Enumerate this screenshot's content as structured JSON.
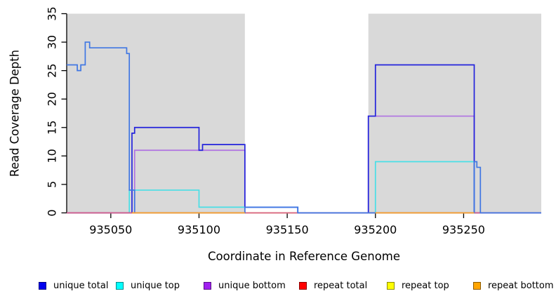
{
  "chart_data": {
    "type": "line",
    "subtype": "step-coverage",
    "title": "",
    "xlabel": "Coordinate in Reference Genome",
    "ylabel": "Read Coverage Depth",
    "xlim": [
      935025,
      935294
    ],
    "ylim": [
      0,
      35
    ],
    "x_ticks": [
      935050,
      935100,
      935150,
      935200,
      935250
    ],
    "y_ticks": [
      0,
      5,
      10,
      15,
      20,
      25,
      30,
      35
    ],
    "grid": false,
    "legend_position": "bottom-horizontal",
    "axis_color": "#000000",
    "background_regions": [
      {
        "name": "highlight-band-left",
        "x0": 935025,
        "x1": 935126,
        "color": "#d9d9d9"
      },
      {
        "name": "highlight-band-right",
        "x0": 935196,
        "x1": 935294,
        "color": "#d9d9d9"
      }
    ],
    "series": [
      {
        "name": "unique bottom",
        "color": "#b072e2",
        "segments": [
          [
            [
              935025,
              0
            ],
            [
              935063.5,
              0
            ],
            [
              935063.5,
              11
            ],
            [
              935126,
              11
            ],
            [
              935126,
              0
            ],
            [
              935196,
              0
            ],
            [
              935196,
              17
            ],
            [
              935256,
              17
            ],
            [
              935256,
              0
            ],
            [
              935294,
              0
            ]
          ]
        ]
      },
      {
        "name": "unique top",
        "color": "#49dfe6",
        "segments": [
          [
            [
              935025,
              0
            ],
            [
              935060.5,
              0
            ],
            [
              935060.5,
              4
            ],
            [
              935100,
              4
            ],
            [
              935100,
              1
            ],
            [
              935156,
              1
            ],
            [
              935156,
              0
            ],
            [
              935200,
              0
            ],
            [
              935200,
              9
            ],
            [
              935256,
              9
            ],
            [
              935256,
              0
            ],
            [
              935294,
              0
            ]
          ]
        ]
      },
      {
        "name": "repeat top",
        "color": "#ffff00",
        "segments": [
          [
            [
              935025,
              0
            ],
            [
              935294,
              0
            ]
          ]
        ]
      },
      {
        "name": "unique total",
        "color": "#2323dc",
        "segments": [
          [
            [
              935025,
              0
            ],
            [
              935062,
              0
            ],
            [
              935062,
              14
            ],
            [
              935063.5,
              14
            ],
            [
              935063.5,
              15
            ],
            [
              935100,
              15
            ],
            [
              935100,
              11
            ],
            [
              935102,
              11
            ],
            [
              935102,
              12
            ],
            [
              935126,
              12
            ],
            [
              935126,
              1
            ],
            [
              935156,
              1
            ],
            [
              935156,
              0
            ],
            [
              935196,
              0
            ],
            [
              935196,
              17
            ],
            [
              935200,
              17
            ],
            [
              935200,
              26
            ],
            [
              935256,
              26
            ],
            [
              935256,
              0
            ],
            [
              935294,
              0
            ]
          ]
        ]
      },
      {
        "name": "repeat total",
        "color": "#d9608d",
        "segments": [
          [
            [
              935025,
              0
            ],
            [
              935294,
              0
            ]
          ]
        ]
      },
      {
        "name": "total (unlabeled)",
        "color": "#4077e3",
        "segments": [
          [
            [
              935025,
              26
            ],
            [
              935031,
              26
            ],
            [
              935031,
              25
            ],
            [
              935033,
              25
            ],
            [
              935033,
              26
            ],
            [
              935035.5,
              26
            ],
            [
              935035.5,
              30
            ],
            [
              935038,
              30
            ],
            [
              935038,
              29
            ],
            [
              935059,
              29
            ],
            [
              935059,
              28
            ],
            [
              935060.5,
              28
            ],
            [
              935060.5,
              4
            ],
            [
              935063.5,
              4
            ],
            [
              935063.5,
              0
            ],
            [
              935126,
              0
            ],
            [
              935126,
              1
            ],
            [
              935156,
              1
            ],
            [
              935156,
              0
            ],
            [
              935256,
              0
            ],
            [
              935256,
              9
            ],
            [
              935257.5,
              9
            ],
            [
              935257.5,
              8
            ],
            [
              935259.5,
              8
            ],
            [
              935259.5,
              0
            ],
            [
              935294,
              0
            ]
          ]
        ]
      },
      {
        "name": "repeat bottom",
        "color": "#ffa126",
        "segments": [
          [
            [
              935062,
              0
            ],
            [
              935126,
              0
            ]
          ],
          [
            [
              935200,
              0
            ],
            [
              935256,
              0
            ]
          ]
        ]
      }
    ],
    "legend": [
      {
        "label": "unique total",
        "color": "#0000ee"
      },
      {
        "label": "unique top",
        "color": "#00ffff"
      },
      {
        "label": "unique bottom",
        "color": "#a020f0"
      },
      {
        "label": "repeat total",
        "color": "#ff0000"
      },
      {
        "label": "repeat top",
        "color": "#ffff00"
      },
      {
        "label": "repeat bottom",
        "color": "#ffa500"
      }
    ]
  }
}
